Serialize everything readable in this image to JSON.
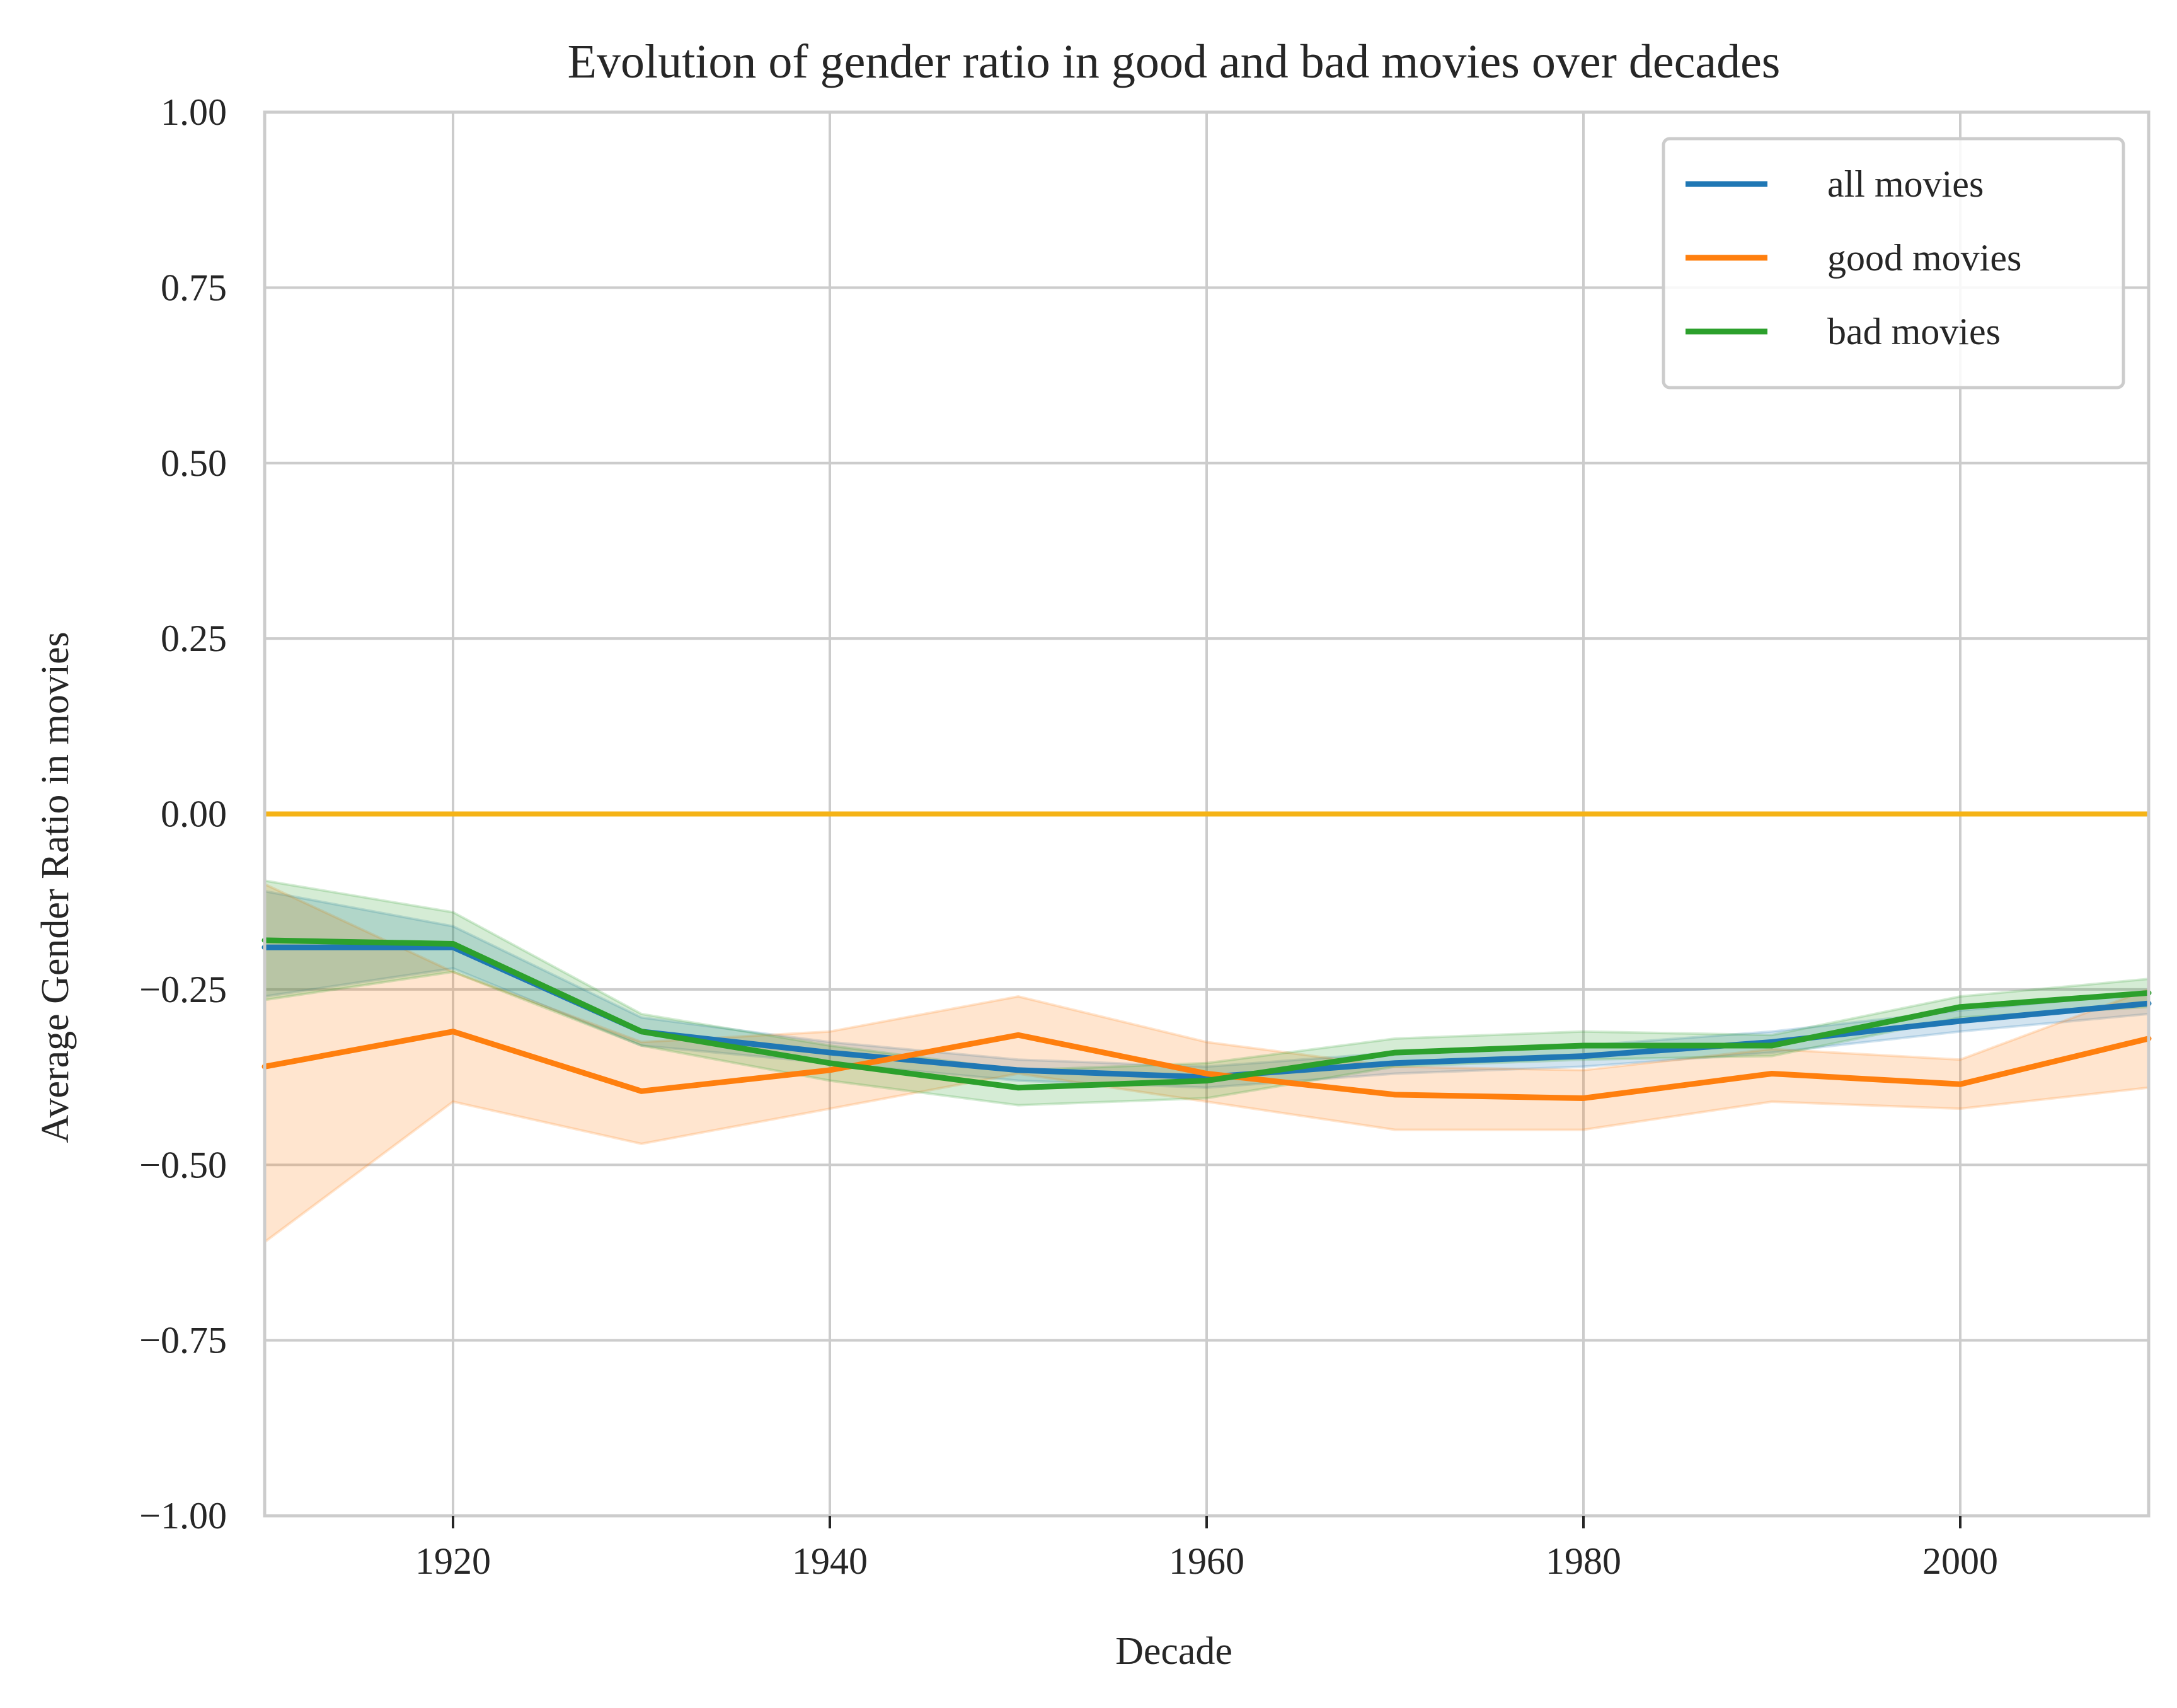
{
  "chart_data": {
    "type": "line",
    "title": "Evolution of gender ratio in good and bad movies over decades",
    "xlabel": "Decade",
    "ylabel": "Average Gender Ratio in movies",
    "xlim": [
      1910,
      2010
    ],
    "ylim": [
      -1.0,
      1.0
    ],
    "grid": true,
    "legend_position": "top-right",
    "x_ticks": [
      1920,
      1940,
      1960,
      1980,
      2000
    ],
    "x_tick_labels": [
      "1920",
      "1940",
      "1960",
      "1980",
      "2000"
    ],
    "y_ticks": [
      1.0,
      0.75,
      0.5,
      0.25,
      0.0,
      -0.25,
      -0.5,
      -0.75,
      -1.0
    ],
    "y_tick_labels": [
      "1.00",
      "0.75",
      "0.50",
      "0.25",
      "0.00",
      "−0.25",
      "−0.50",
      "−0.75",
      "−1.00"
    ],
    "x": [
      1910,
      1920,
      1930,
      1940,
      1950,
      1960,
      1970,
      1980,
      1990,
      2000,
      2010
    ],
    "reference_line": {
      "y": 0.0,
      "color": "#f5b316"
    },
    "series": [
      {
        "name": "all movies",
        "color": "#1f77b4",
        "values": [
          -0.19,
          -0.19,
          -0.31,
          -0.34,
          -0.365,
          -0.375,
          -0.355,
          -0.345,
          -0.325,
          -0.295,
          -0.27
        ],
        "ci_lower": [
          -0.26,
          -0.22,
          -0.33,
          -0.355,
          -0.38,
          -0.39,
          -0.37,
          -0.36,
          -0.34,
          -0.31,
          -0.285
        ],
        "ci_upper": [
          -0.11,
          -0.16,
          -0.29,
          -0.325,
          -0.35,
          -0.36,
          -0.34,
          -0.33,
          -0.31,
          -0.28,
          -0.255
        ]
      },
      {
        "name": "good movies",
        "color": "#ff7f0e",
        "values": [
          -0.36,
          -0.31,
          -0.395,
          -0.365,
          -0.315,
          -0.37,
          -0.4,
          -0.405,
          -0.37,
          -0.385,
          -0.32
        ],
        "ci_lower": [
          -0.61,
          -0.41,
          -0.47,
          -0.42,
          -0.37,
          -0.41,
          -0.45,
          -0.45,
          -0.41,
          -0.42,
          -0.39
        ],
        "ci_upper": [
          -0.1,
          -0.225,
          -0.325,
          -0.31,
          -0.26,
          -0.325,
          -0.36,
          -0.365,
          -0.335,
          -0.35,
          -0.25
        ]
      },
      {
        "name": "bad movies",
        "color": "#2ca02c",
        "values": [
          -0.18,
          -0.185,
          -0.31,
          -0.355,
          -0.39,
          -0.38,
          -0.34,
          -0.33,
          -0.33,
          -0.275,
          -0.255
        ],
        "ci_lower": [
          -0.265,
          -0.225,
          -0.33,
          -0.38,
          -0.415,
          -0.405,
          -0.36,
          -0.35,
          -0.345,
          -0.29,
          -0.275
        ],
        "ci_upper": [
          -0.095,
          -0.14,
          -0.285,
          -0.33,
          -0.365,
          -0.355,
          -0.32,
          -0.31,
          -0.315,
          -0.26,
          -0.235
        ]
      }
    ]
  }
}
